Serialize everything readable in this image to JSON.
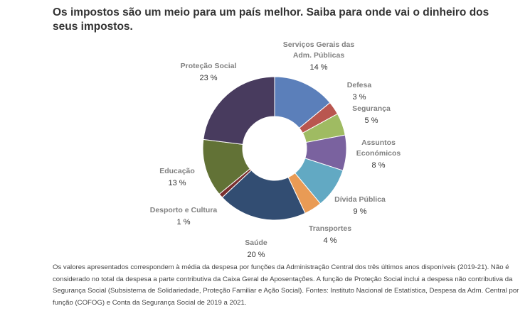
{
  "header": {
    "title": "Os impostos são um meio para um país melhor. Saiba para onde vai o dinheiro dos seus impostos."
  },
  "chart_data": {
    "type": "pie",
    "subtype": "donut",
    "unit": "%",
    "slices": [
      {
        "name_lines": [
          "Serviços Gerais das",
          "Adm. Públicas"
        ],
        "label": "Serviços Gerais das Adm. Públicas",
        "value": 14,
        "value_label": "14 %",
        "color": "#5b7fba"
      },
      {
        "name_lines": [
          "Defesa"
        ],
        "label": "Defesa",
        "value": 3,
        "value_label": "3 %",
        "color": "#b9564f"
      },
      {
        "name_lines": [
          "Segurança"
        ],
        "label": "Segurança",
        "value": 5,
        "value_label": "5 %",
        "color": "#9fbb62"
      },
      {
        "name_lines": [
          "Assuntos",
          "Económicos"
        ],
        "label": "Assuntos Económicos",
        "value": 8,
        "value_label": "8 %",
        "color": "#7a629f"
      },
      {
        "name_lines": [
          "Dívida Pública"
        ],
        "label": "Dívida Pública",
        "value": 9,
        "value_label": "9 %",
        "color": "#62a9c3"
      },
      {
        "name_lines": [
          "Transportes"
        ],
        "label": "Transportes",
        "value": 4,
        "value_label": "4 %",
        "color": "#e99b55"
      },
      {
        "name_lines": [
          "Saúde"
        ],
        "label": "Saúde",
        "value": 20,
        "value_label": "20 %",
        "color": "#324d72"
      },
      {
        "name_lines": [
          "Desporto e Cultura"
        ],
        "label": "Desporto e Cultura",
        "value": 1,
        "value_label": "1 %",
        "color": "#7a2f2f"
      },
      {
        "name_lines": [
          "Educação"
        ],
        "label": "Educação",
        "value": 13,
        "value_label": "13 %",
        "color": "#627236"
      },
      {
        "name_lines": [
          "Proteção Social"
        ],
        "label": "Proteção Social",
        "value": 23,
        "value_label": "23 %",
        "color": "#483b5e"
      }
    ],
    "start_angle": "12 o'clock, clockwise",
    "legend": "none (direct labels)"
  },
  "footnote": {
    "text": "Os valores apresentados correspondem à média da despesa por funções da Administração Central dos três últimos anos disponíveis (2019-21). Não é considerado no total da despesa a parte contributiva da Caixa Geral de Aposentações. A função de Proteção Social inclui a despesa não contributiva da Segurança Social (Subsistema de Solidariedade, Proteção Familiar e Ação Social). Fontes: Instituto Nacional de Estatística, Despesa da Adm. Central por função (COFOG) e Conta da Segurança Social de 2019 a 2021."
  }
}
